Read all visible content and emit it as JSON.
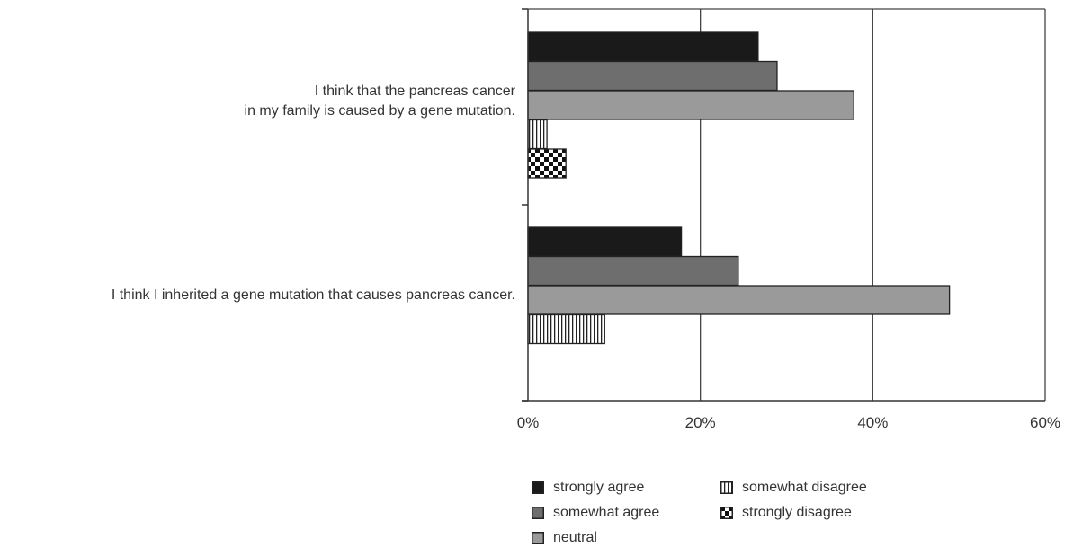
{
  "chart_data": {
    "type": "bar",
    "orientation": "horizontal",
    "categories": [
      [
        "I think that the pancreas cancer",
        "in my family is caused by a gene mutation."
      ],
      [
        "I think I inherited a gene mutation that causes pancreas cancer."
      ]
    ],
    "series": [
      {
        "name": "strongly agree",
        "values": [
          26.7,
          17.8
        ],
        "fill": "#1a1a1a",
        "pattern": "solid"
      },
      {
        "name": "somewhat agree",
        "values": [
          28.9,
          24.4
        ],
        "fill": "#6e6e6e",
        "pattern": "solid"
      },
      {
        "name": "neutral",
        "values": [
          37.8,
          48.9
        ],
        "fill": "#9a9a9a",
        "pattern": "solid"
      },
      {
        "name": "somewhat disagree",
        "values": [
          2.2,
          8.9
        ],
        "fill": "#ffffff",
        "pattern": "vertical-stripes"
      },
      {
        "name": "strongly disagree",
        "values": [
          4.4,
          0
        ],
        "fill": "#ffffff",
        "pattern": "checker"
      }
    ],
    "xlim": [
      0,
      60
    ],
    "xticks": [
      "0%",
      "20%",
      "40%",
      "60%"
    ],
    "grid": true,
    "legend_position": "bottom"
  }
}
